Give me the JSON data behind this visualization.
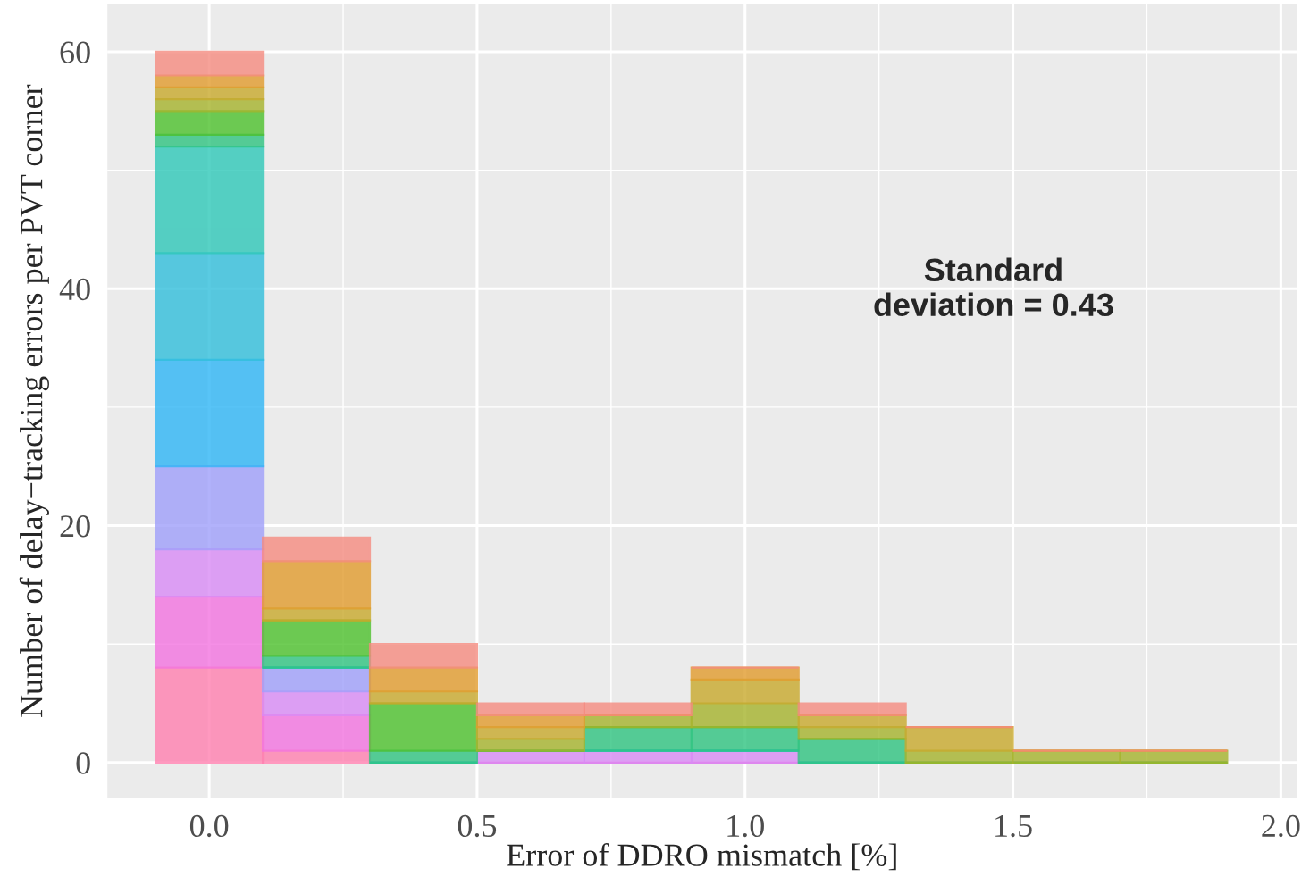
{
  "chart_data": {
    "type": "bar",
    "stacked": true,
    "xlabel": "Error of DDRO mismatch [%]",
    "ylabel": "Number of delay−tracking errors per PVT corner",
    "x": [
      0.0,
      0.2,
      0.4,
      0.6,
      0.8,
      1.0,
      1.2,
      1.4,
      1.6,
      1.8
    ],
    "series": [
      {
        "color": "#ff80b0",
        "values": [
          8,
          1,
          0,
          0,
          0,
          0,
          0,
          0,
          0,
          0
        ]
      },
      {
        "color": "#f374e0",
        "values": [
          6,
          3,
          0,
          0,
          0,
          0,
          0,
          0,
          0,
          0
        ]
      },
      {
        "color": "#d98bf5",
        "values": [
          4,
          2,
          0,
          1,
          1,
          1,
          0,
          0,
          0,
          0
        ]
      },
      {
        "color": "#9fa0fb",
        "values": [
          7,
          2,
          0,
          0,
          0,
          0,
          0,
          0,
          0,
          0
        ]
      },
      {
        "color": "#2fb6f6",
        "values": [
          9,
          0,
          0,
          0,
          0,
          0,
          0,
          0,
          0,
          0
        ]
      },
      {
        "color": "#31bfdc",
        "values": [
          9,
          0,
          0,
          0,
          0,
          0,
          0,
          0,
          0,
          0
        ]
      },
      {
        "color": "#2fc8b8",
        "values": [
          9,
          0,
          0,
          0,
          0,
          0,
          0,
          0,
          0,
          0
        ]
      },
      {
        "color": "#2fc480",
        "values": [
          1,
          1,
          1,
          0,
          2,
          2,
          2,
          0,
          0,
          0
        ]
      },
      {
        "color": "#4dc12c",
        "values": [
          2,
          3,
          4,
          0,
          0,
          0,
          0,
          0,
          0,
          0
        ]
      },
      {
        "color": "#a6b42c",
        "values": [
          1,
          0,
          0,
          1,
          1,
          2,
          1,
          1,
          1,
          1
        ]
      },
      {
        "color": "#c9a92d",
        "values": [
          1,
          1,
          1,
          1,
          0,
          2,
          1,
          2,
          0,
          0
        ]
      },
      {
        "color": "#e29c2e",
        "values": [
          1,
          4,
          2,
          1,
          0,
          1,
          0,
          0,
          0,
          0
        ]
      },
      {
        "color": "#f58b80",
        "values": [
          2,
          2,
          2,
          1,
          1,
          0,
          1,
          0,
          0,
          0
        ]
      }
    ],
    "xlim": [
      -0.19,
      2.03
    ],
    "xticks": [
      {
        "value": 0,
        "label": "0.0"
      },
      {
        "value": 0.5,
        "label": "0.5"
      },
      {
        "value": 1,
        "label": "1.0"
      },
      {
        "value": 1.5,
        "label": "1.5"
      },
      {
        "value": 2,
        "label": "2.0"
      }
    ],
    "ylim": [
      -3,
      64
    ],
    "yticks": [
      0,
      20,
      40,
      60
    ],
    "grid": true,
    "annotations": [
      "Standard\ndeviation = 0.43"
    ]
  }
}
